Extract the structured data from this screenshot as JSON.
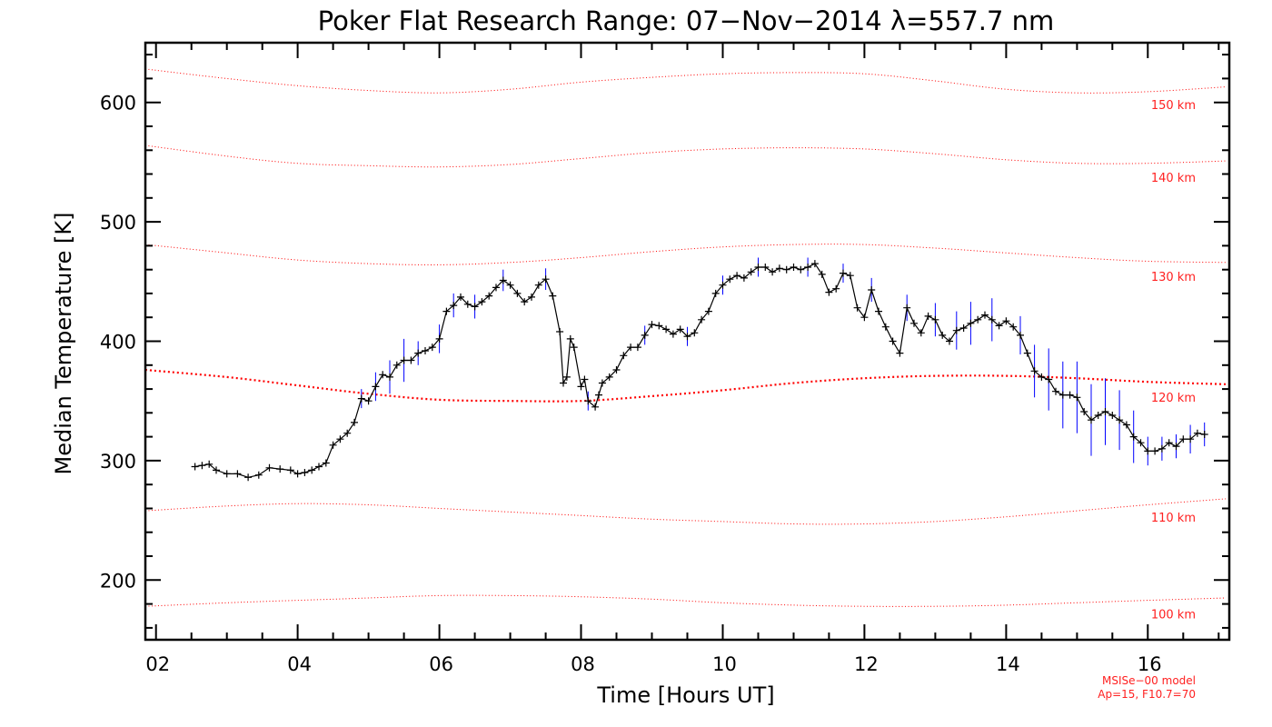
{
  "chart_data": {
    "type": "line",
    "title": "Poker Flat Research Range: 07−Nov−2014 λ=557.7 nm",
    "xlabel": "Time [Hours UT]",
    "ylabel": "Median Temperature [K]",
    "xlim": [
      1.85,
      17.15
    ],
    "ylim": [
      150,
      650
    ],
    "xticks": [
      2,
      4,
      6,
      8,
      10,
      12,
      14,
      16
    ],
    "xtick_labels": [
      "02",
      "04",
      "06",
      "08",
      "10",
      "12",
      "14",
      "16"
    ],
    "yticks": [
      200,
      300,
      400,
      500,
      600
    ],
    "ytick_labels": [
      "200",
      "300",
      "400",
      "500",
      "600"
    ],
    "grid": false,
    "footnote": [
      "MSISe−00 model",
      "Ap=15, F10.7=70"
    ],
    "colors": {
      "measurement": "#000000",
      "error_bars": "#0000ff",
      "model_lines": "#ff0000"
    },
    "measurement": {
      "name": "Median Temperature",
      "x": [
        2.55,
        2.65,
        2.75,
        2.85,
        3.0,
        3.15,
        3.3,
        3.45,
        3.6,
        3.75,
        3.9,
        4.0,
        4.1,
        4.2,
        4.3,
        4.4,
        4.5,
        4.6,
        4.7,
        4.8,
        4.9,
        5.0,
        5.1,
        5.2,
        5.3,
        5.4,
        5.5,
        5.6,
        5.7,
        5.8,
        5.9,
        6.0,
        6.1,
        6.2,
        6.3,
        6.4,
        6.5,
        6.6,
        6.7,
        6.8,
        6.9,
        7.0,
        7.1,
        7.2,
        7.3,
        7.4,
        7.5,
        7.6,
        7.7,
        7.75,
        7.8,
        7.85,
        7.9,
        8.0,
        8.05,
        8.1,
        8.2,
        8.25,
        8.3,
        8.4,
        8.5,
        8.6,
        8.7,
        8.8,
        8.9,
        9.0,
        9.1,
        9.2,
        9.3,
        9.4,
        9.5,
        9.6,
        9.7,
        9.8,
        9.9,
        10.0,
        10.1,
        10.2,
        10.3,
        10.4,
        10.5,
        10.6,
        10.7,
        10.8,
        10.9,
        11.0,
        11.1,
        11.2,
        11.3,
        11.4,
        11.5,
        11.6,
        11.7,
        11.8,
        11.9,
        12.0,
        12.1,
        12.2,
        12.3,
        12.4,
        12.5,
        12.6,
        12.7,
        12.8,
        12.9,
        13.0,
        13.1,
        13.2,
        13.3,
        13.4,
        13.5,
        13.6,
        13.7,
        13.8,
        13.9,
        14.0,
        14.1,
        14.2,
        14.3,
        14.4,
        14.5,
        14.6,
        14.7,
        14.8,
        14.9,
        15.0,
        15.1,
        15.2,
        15.3,
        15.4,
        15.5,
        15.6,
        15.7,
        15.8,
        15.9,
        16.0,
        16.1,
        16.2,
        16.3,
        16.4,
        16.5,
        16.6,
        16.7,
        16.8
      ],
      "y": [
        295,
        296,
        297,
        292,
        289,
        289,
        286,
        288,
        294,
        293,
        292,
        289,
        290,
        292,
        295,
        298,
        313,
        318,
        323,
        332,
        352,
        350,
        362,
        372,
        370,
        380,
        384,
        384,
        390,
        392,
        395,
        402,
        425,
        430,
        437,
        431,
        429,
        433,
        438,
        445,
        451,
        447,
        440,
        433,
        437,
        447,
        452,
        438,
        408,
        365,
        370,
        402,
        395,
        362,
        368,
        350,
        345,
        355,
        365,
        370,
        376,
        388,
        395,
        395,
        405,
        414,
        413,
        410,
        406,
        410,
        404,
        407,
        418,
        425,
        440,
        447,
        452,
        455,
        453,
        458,
        462,
        462,
        458,
        461,
        460,
        462,
        460,
        462,
        465,
        456,
        441,
        444,
        457,
        455,
        428,
        420,
        443,
        425,
        412,
        400,
        390,
        428,
        415,
        407,
        421,
        418,
        405,
        400,
        409,
        411,
        415,
        418,
        422,
        418,
        413,
        417,
        412,
        405,
        390,
        375,
        370,
        368,
        358,
        355,
        355,
        353,
        341,
        334,
        338,
        341,
        338,
        334,
        330,
        320,
        315,
        308,
        308,
        310,
        315,
        312,
        318,
        318,
        323,
        322
      ]
    },
    "error_bars": {
      "x": [
        4.9,
        5.1,
        5.3,
        5.5,
        5.7,
        6.0,
        6.2,
        6.5,
        6.9,
        7.5,
        8.1,
        8.9,
        9.5,
        10.0,
        10.5,
        11.2,
        11.7,
        12.1,
        12.6,
        13.0,
        13.3,
        13.5,
        13.8,
        14.2,
        14.4,
        14.6,
        14.8,
        15.0,
        15.2,
        15.4,
        15.6,
        15.8,
        16.0,
        16.2,
        16.4,
        16.6,
        16.8
      ],
      "half_width": [
        8,
        12,
        14,
        18,
        10,
        12,
        10,
        10,
        9,
        9,
        8,
        8,
        8,
        8,
        8,
        8,
        8,
        10,
        11,
        14,
        16,
        18,
        18,
        16,
        22,
        26,
        28,
        30,
        30,
        28,
        25,
        22,
        12,
        10,
        10,
        12,
        10
      ]
    },
    "model_lines": {
      "x": [
        1.85,
        3,
        4,
        5,
        6,
        7,
        8,
        9,
        10,
        11,
        12,
        13,
        14,
        15,
        16,
        17.1
      ],
      "series": [
        {
          "name": "150 km",
          "values": [
            628,
            620,
            614,
            610,
            608,
            611,
            617,
            621,
            624,
            625,
            624,
            618,
            611,
            608,
            609,
            613
          ]
        },
        {
          "name": "140 km",
          "values": [
            564,
            555,
            549,
            547,
            546,
            548,
            553,
            558,
            561,
            562,
            561,
            557,
            552,
            549,
            549,
            551
          ]
        },
        {
          "name": "130 km",
          "values": [
            481,
            474,
            468,
            465,
            464,
            466,
            470,
            475,
            479,
            481,
            481,
            478,
            474,
            470,
            467,
            466
          ]
        },
        {
          "name": "120 km",
          "values": [
            376,
            370,
            363,
            356,
            351,
            350,
            350,
            354,
            359,
            365,
            369,
            371,
            371,
            369,
            366,
            364
          ]
        },
        {
          "name": "110 km",
          "values": [
            258,
            262,
            264,
            263,
            260,
            257,
            254,
            251,
            249,
            247,
            247,
            249,
            253,
            258,
            263,
            268
          ]
        },
        {
          "name": "100 km",
          "values": [
            178,
            181,
            183,
            185,
            187,
            187,
            186,
            184,
            181,
            179,
            178,
            178,
            179,
            181,
            183,
            185
          ]
        }
      ]
    }
  }
}
